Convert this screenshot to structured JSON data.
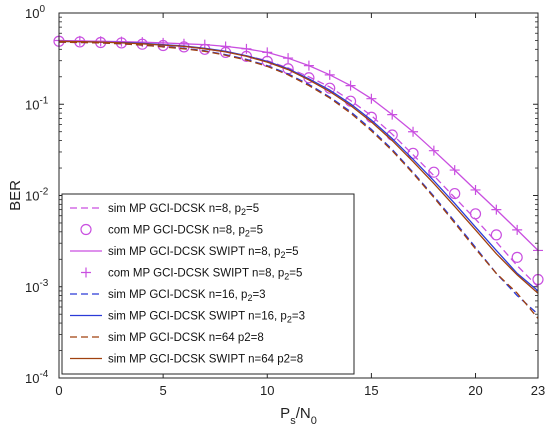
{
  "chart_data": {
    "type": "line",
    "title": "",
    "xlabel": {
      "base": "P",
      "base_sub": "s",
      "sep": "/N",
      "sep_sub": "0"
    },
    "ylabel": "BER",
    "xlim": [
      0,
      23
    ],
    "ylim": [
      0.0001,
      1
    ],
    "yscale": "log",
    "grid": false,
    "legend_position": "bottom-left",
    "xticks": [
      0,
      5,
      10,
      15,
      20,
      23
    ],
    "xtick_labels": [
      "0",
      "5",
      "10",
      "15",
      "20",
      "23"
    ],
    "yticks": [
      {
        "value": 1,
        "base": "10",
        "exp": "0"
      },
      {
        "value": 0.1,
        "base": "10",
        "exp": "-1"
      },
      {
        "value": 0.01,
        "base": "10",
        "exp": "-2"
      },
      {
        "value": 0.001,
        "base": "10",
        "exp": "-3"
      },
      {
        "value": 0.0001,
        "base": "10",
        "exp": "-4"
      }
    ],
    "series": [
      {
        "legend": [
          "sim MP GCI-DCSK n=8, p",
          "2",
          "=5"
        ],
        "color": "#c94fe0",
        "dash": "dash",
        "marker": "none",
        "x": [
          0,
          1,
          2,
          3,
          4,
          5,
          6,
          7,
          8,
          9,
          10,
          11,
          12,
          13,
          14,
          15,
          16,
          17,
          18,
          19,
          20,
          21,
          22,
          23
        ],
        "y": [
          0.49,
          0.485,
          0.48,
          0.475,
          0.46,
          0.445,
          0.43,
          0.405,
          0.375,
          0.34,
          0.3,
          0.25,
          0.2,
          0.155,
          0.11,
          0.075,
          0.047,
          0.028,
          0.0165,
          0.0095,
          0.0055,
          0.0031,
          0.0017,
          0.001
        ]
      },
      {
        "legend": [
          "com MP GCI-DCSK n=8, p",
          "2",
          "=5"
        ],
        "color": "#c94fe0",
        "dash": "none",
        "marker": "circle",
        "x": [
          0,
          1,
          2,
          3,
          4,
          5,
          6,
          7,
          8,
          9,
          10,
          11,
          12,
          13,
          14,
          15,
          16,
          17,
          18,
          19,
          20,
          21,
          22,
          23
        ],
        "y": [
          0.49,
          0.482,
          0.475,
          0.47,
          0.455,
          0.44,
          0.425,
          0.4,
          0.37,
          0.335,
          0.295,
          0.245,
          0.195,
          0.15,
          0.108,
          0.072,
          0.046,
          0.029,
          0.018,
          0.0105,
          0.0063,
          0.0037,
          0.0021,
          0.0012
        ]
      },
      {
        "legend": [
          "sim MP GCI-DCSK SWIPT n=8, p",
          "2",
          "=5"
        ],
        "color": "#c94fe0",
        "dash": "solid",
        "marker": "none",
        "x": [
          0,
          1,
          2,
          3,
          4,
          5,
          6,
          7,
          8,
          9,
          10,
          11,
          12,
          13,
          14,
          15,
          16,
          17,
          18,
          19,
          20,
          21,
          22,
          23
        ],
        "y": [
          0.5,
          0.495,
          0.49,
          0.485,
          0.48,
          0.47,
          0.46,
          0.45,
          0.43,
          0.405,
          0.37,
          0.32,
          0.265,
          0.21,
          0.16,
          0.115,
          0.077,
          0.05,
          0.031,
          0.019,
          0.0115,
          0.007,
          0.0042,
          0.0025
        ]
      },
      {
        "legend": [
          "com MP GCI-DCSK SWIPT n=8, p",
          "2",
          "=5"
        ],
        "color": "#c94fe0",
        "dash": "none",
        "marker": "plus",
        "x": [
          0,
          1,
          2,
          3,
          4,
          5,
          6,
          7,
          8,
          9,
          10,
          11,
          12,
          13,
          14,
          15,
          16,
          17,
          18,
          19,
          20,
          21,
          22,
          23
        ],
        "y": [
          0.5,
          0.495,
          0.49,
          0.485,
          0.48,
          0.47,
          0.46,
          0.45,
          0.43,
          0.405,
          0.37,
          0.32,
          0.265,
          0.21,
          0.16,
          0.115,
          0.077,
          0.05,
          0.031,
          0.019,
          0.0115,
          0.007,
          0.0042,
          0.0025
        ]
      },
      {
        "legend": [
          "sim MP GCI-DCSK n=16, p",
          "2",
          "=3"
        ],
        "color": "#2b3bd8",
        "dash": "dash",
        "marker": "none",
        "x": [
          0,
          1,
          2,
          3,
          4,
          5,
          6,
          7,
          8,
          9,
          10,
          11,
          12,
          13,
          14,
          15,
          16,
          17,
          18,
          19,
          20,
          21,
          22,
          23
        ],
        "y": [
          0.48,
          0.475,
          0.47,
          0.46,
          0.445,
          0.43,
          0.41,
          0.385,
          0.35,
          0.31,
          0.265,
          0.215,
          0.165,
          0.12,
          0.083,
          0.053,
          0.032,
          0.018,
          0.0098,
          0.0052,
          0.0027,
          0.0014,
          0.0008,
          0.0005
        ]
      },
      {
        "legend": [
          "sim MP GCI-DCSK SWIPT n=16, p",
          "2",
          "=3"
        ],
        "color": "#2b3bd8",
        "dash": "solid",
        "marker": "none",
        "x": [
          0,
          1,
          2,
          3,
          4,
          5,
          6,
          7,
          8,
          9,
          10,
          11,
          12,
          13,
          14,
          15,
          16,
          17,
          18,
          19,
          20,
          21,
          22,
          23
        ],
        "y": [
          0.49,
          0.485,
          0.48,
          0.475,
          0.465,
          0.45,
          0.435,
          0.41,
          0.38,
          0.34,
          0.295,
          0.245,
          0.19,
          0.143,
          0.101,
          0.067,
          0.042,
          0.025,
          0.0145,
          0.0082,
          0.0045,
          0.0025,
          0.0014,
          0.0009
        ]
      },
      {
        "legend": [
          "sim MP GCI-DCSK n=64 p2=8"
        ],
        "color": "#a0410f",
        "dash": "dash",
        "marker": "none",
        "x": [
          0,
          1,
          2,
          3,
          4,
          5,
          6,
          7,
          8,
          9,
          10,
          11,
          12,
          13,
          14,
          15,
          16,
          17,
          18,
          19,
          20,
          21,
          22,
          23
        ],
        "y": [
          0.48,
          0.475,
          0.47,
          0.46,
          0.445,
          0.425,
          0.405,
          0.38,
          0.345,
          0.305,
          0.26,
          0.21,
          0.16,
          0.117,
          0.08,
          0.051,
          0.031,
          0.0175,
          0.0095,
          0.005,
          0.0026,
          0.0014,
          0.00085,
          0.00045
        ]
      },
      {
        "legend": [
          "sim MP GCI-DCSK SWIPT n=64 p2=8"
        ],
        "color": "#a0410f",
        "dash": "solid",
        "marker": "none",
        "x": [
          0,
          1,
          2,
          3,
          4,
          5,
          6,
          7,
          8,
          9,
          10,
          11,
          12,
          13,
          14,
          15,
          16,
          17,
          18,
          19,
          20,
          21,
          22,
          23
        ],
        "y": [
          0.49,
          0.485,
          0.48,
          0.47,
          0.46,
          0.445,
          0.43,
          0.405,
          0.375,
          0.335,
          0.29,
          0.24,
          0.185,
          0.138,
          0.097,
          0.064,
          0.04,
          0.0235,
          0.0135,
          0.0076,
          0.0042,
          0.0023,
          0.00135,
          0.00085
        ]
      }
    ]
  }
}
